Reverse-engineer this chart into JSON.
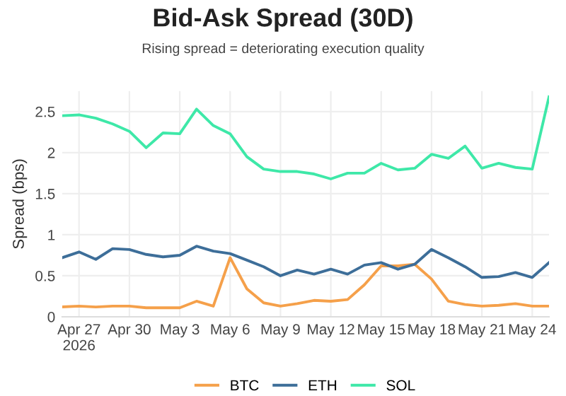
{
  "chart_data": {
    "type": "line",
    "title": "Bid-Ask Spread (30D)",
    "subtitle": "Rising spread = deteriorating execution quality",
    "ylabel": "Spread (bps)",
    "x": [
      "2026-04-26",
      "2026-04-27",
      "2026-04-28",
      "2026-04-29",
      "2026-04-30",
      "2026-05-01",
      "2026-05-02",
      "2026-05-03",
      "2026-05-04",
      "2026-05-05",
      "2026-05-06",
      "2026-05-07",
      "2026-05-08",
      "2026-05-09",
      "2026-05-10",
      "2026-05-11",
      "2026-05-12",
      "2026-05-13",
      "2026-05-14",
      "2026-05-15",
      "2026-05-16",
      "2026-05-17",
      "2026-05-18",
      "2026-05-19",
      "2026-05-20",
      "2026-05-21",
      "2026-05-22",
      "2026-05-23",
      "2026-05-24",
      "2026-05-25"
    ],
    "series": [
      {
        "name": "BTC",
        "color": "#f5a04a",
        "values": [
          0.12,
          0.13,
          0.12,
          0.13,
          0.13,
          0.11,
          0.11,
          0.11,
          0.19,
          0.13,
          0.72,
          0.34,
          0.17,
          0.13,
          0.16,
          0.2,
          0.19,
          0.21,
          0.39,
          0.62,
          0.62,
          0.64,
          0.46,
          0.19,
          0.15,
          0.13,
          0.14,
          0.16,
          0.13,
          0.13
        ]
      },
      {
        "name": "ETH",
        "color": "#3d6e99",
        "values": [
          0.72,
          0.79,
          0.7,
          0.83,
          0.82,
          0.76,
          0.73,
          0.75,
          0.86,
          0.8,
          0.77,
          0.69,
          0.61,
          0.5,
          0.57,
          0.52,
          0.58,
          0.52,
          0.63,
          0.66,
          0.58,
          0.64,
          0.82,
          0.72,
          0.61,
          0.48,
          0.49,
          0.54,
          0.48,
          0.66
        ]
      },
      {
        "name": "SOL",
        "color": "#3ee8a8",
        "values": [
          2.45,
          2.46,
          2.42,
          2.35,
          2.26,
          2.06,
          2.24,
          2.23,
          2.53,
          2.33,
          2.23,
          1.95,
          1.8,
          1.77,
          1.77,
          1.74,
          1.68,
          1.75,
          1.75,
          1.87,
          1.79,
          1.81,
          1.98,
          1.93,
          2.08,
          1.81,
          1.87,
          1.82,
          1.8,
          2.68
        ]
      }
    ],
    "xlim": [
      "2026-04-26",
      "2026-05-25"
    ],
    "xticks": [
      {
        "value": "2026-04-27",
        "label": "Apr 27\n2026"
      },
      {
        "value": "2026-04-30",
        "label": "Apr 30"
      },
      {
        "value": "2026-05-03",
        "label": "May 3"
      },
      {
        "value": "2026-05-06",
        "label": "May 6"
      },
      {
        "value": "2026-05-09",
        "label": "May 9"
      },
      {
        "value": "2026-05-12",
        "label": "May 12"
      },
      {
        "value": "2026-05-15",
        "label": "May 15"
      },
      {
        "value": "2026-05-18",
        "label": "May 18"
      },
      {
        "value": "2026-05-21",
        "label": "May 21"
      },
      {
        "value": "2026-05-24",
        "label": "May 24"
      }
    ],
    "ylim": [
      0,
      2.75
    ],
    "yticks": [
      0,
      0.5,
      1,
      1.5,
      2,
      2.5
    ],
    "grid": true,
    "legend": "bottom",
    "marker": "none",
    "line_style": "solid"
  }
}
